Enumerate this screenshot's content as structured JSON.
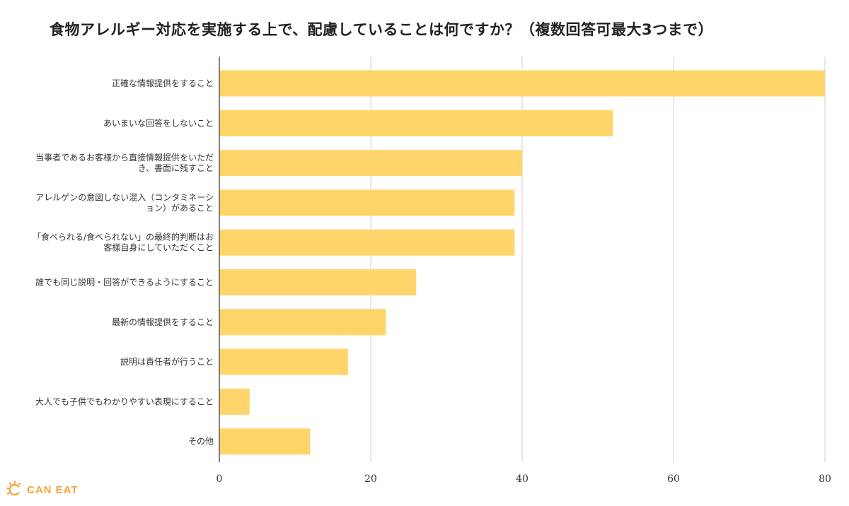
{
  "chart_data": {
    "type": "bar",
    "orientation": "horizontal",
    "title": "食物アレルギー対応を実施する上で、配慮していることは何ですか？（複数回答可最大3つまで）",
    "categories": [
      "正確な情報提供をすること",
      "あいまいな回答をしないこと",
      "当事者であるお客様から直接情報提供をいただき、書面に残すこと",
      "アレルゲンの意図しない混入（コンタミネーション）があること",
      "「食べられる/食べられない」の最終的判断はお客様自身にしていただくこと",
      "誰でも同じ説明・回答ができるようにすること",
      "最新の情報提供をすること",
      "説明は責任者が行うこと",
      "大人でも子供でもわかりやすい表現にすること",
      "その他"
    ],
    "category_lines": [
      [
        "正確な情報提供をすること"
      ],
      [
        "あいまいな回答をしないこと"
      ],
      [
        "当事者であるお客様から直接情報提供をいただ",
        "き、書面に残すこと"
      ],
      [
        "アレルゲンの意図しない混入（コンタミネーシ",
        "ョン）があること"
      ],
      [
        "「食べられる/食べられない」の最終的判断はお",
        "客様自身にしていただくこと"
      ],
      [
        "誰でも同じ説明・回答ができるようにすること"
      ],
      [
        "最新の情報提供をすること"
      ],
      [
        "説明は責任者が行うこと"
      ],
      [
        "大人でも子供でもわかりやすい表現にすること"
      ],
      [
        "その他"
      ]
    ],
    "values": [
      80,
      52,
      40,
      39,
      39,
      26,
      22,
      17,
      4,
      12
    ],
    "xlim": [
      0,
      80
    ],
    "xticks": [
      0,
      20,
      40,
      60,
      80
    ],
    "grid": true,
    "bar_color": "#ffd56b",
    "grid_color": "#cfcfd6"
  },
  "logo": {
    "text": "CAN EAT",
    "color": "#f2a53a"
  }
}
